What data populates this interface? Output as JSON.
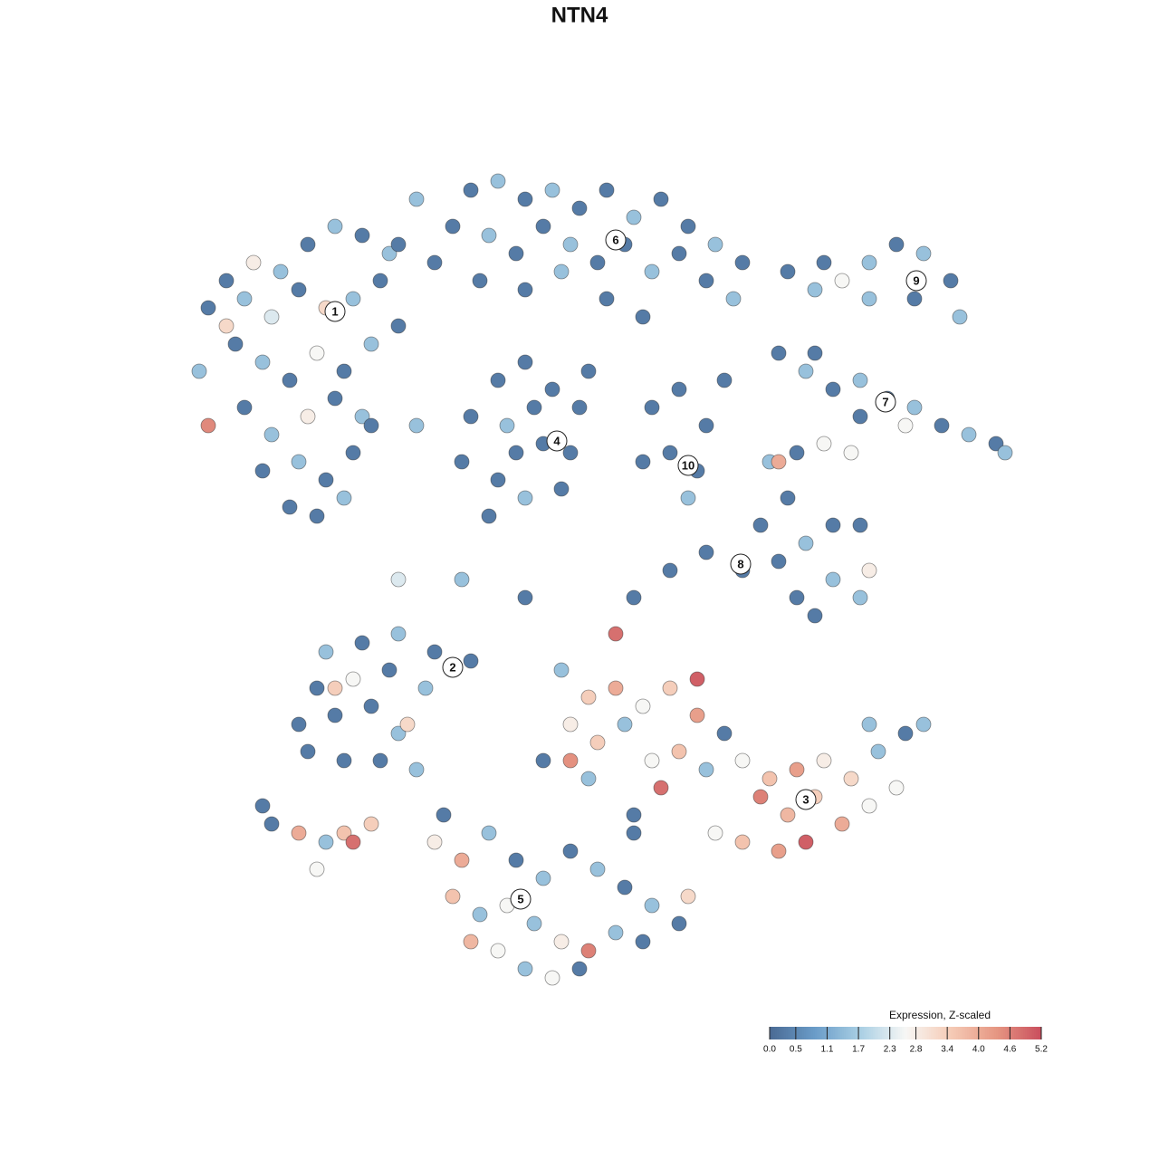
{
  "chart_data": {
    "type": "scatter",
    "title": "NTN4",
    "x": [
      25,
      28,
      31,
      34,
      37,
      40,
      43,
      23,
      27,
      30,
      33,
      36,
      39,
      42,
      22,
      26,
      29,
      32,
      35,
      38,
      41,
      44,
      23,
      27,
      30,
      34,
      37,
      40,
      29,
      33,
      36,
      39,
      32,
      35,
      38,
      41,
      25,
      52,
      55,
      58,
      61,
      64,
      67,
      70,
      73,
      76,
      79,
      82,
      50,
      54,
      57,
      60,
      63,
      66,
      69,
      72,
      75,
      78,
      81,
      48,
      53,
      58,
      62,
      67,
      71,
      46,
      44,
      55,
      58,
      61,
      64,
      52,
      56,
      60,
      63,
      51,
      55,
      58,
      62,
      54,
      59,
      57,
      65,
      74,
      77,
      76,
      78,
      72,
      75,
      80,
      87,
      90,
      93,
      96,
      99,
      102,
      105,
      101,
      106,
      96,
      91,
      86,
      89,
      92,
      95,
      98,
      101,
      104,
      107,
      110,
      111,
      100,
      95,
      90,
      85,
      88,
      91,
      94,
      87,
      84,
      86,
      89,
      92,
      95,
      78,
      82,
      74,
      70,
      88,
      92,
      95,
      90,
      96,
      86,
      36,
      40,
      44,
      48,
      52,
      35,
      39,
      43,
      47,
      33,
      37,
      41,
      44,
      34,
      38,
      42,
      46,
      37,
      45,
      62,
      65,
      68,
      71,
      74,
      77,
      80,
      63,
      66,
      69,
      72,
      75,
      78,
      68,
      77,
      82,
      85,
      88,
      91,
      94,
      97,
      100,
      102,
      84,
      87,
      90,
      93,
      96,
      89,
      86,
      82,
      79,
      73,
      70,
      65,
      60,
      99,
      96,
      63,
      48,
      51,
      54,
      57,
      60,
      63,
      66,
      69,
      72,
      75,
      50,
      53,
      56,
      59,
      62,
      65,
      68,
      71,
      55,
      58,
      61,
      64,
      49,
      52,
      70,
      76,
      30,
      33,
      36,
      38,
      35,
      39,
      41,
      29,
      44,
      51,
      58,
      46,
      71
    ],
    "y": [
      31,
      29,
      30,
      27,
      25,
      26,
      28,
      34,
      33,
      35,
      32,
      34,
      33,
      31,
      41,
      38,
      40,
      42,
      39,
      41,
      38,
      36,
      47,
      45,
      48,
      46,
      44,
      46,
      52,
      51,
      53,
      50,
      56,
      57,
      55,
      47,
      36,
      21,
      20,
      22,
      21,
      23,
      21,
      24,
      22,
      25,
      27,
      29,
      25,
      26,
      28,
      25,
      27,
      29,
      27,
      30,
      28,
      31,
      33,
      29,
      31,
      32,
      30,
      33,
      35,
      22,
      27,
      42,
      40,
      43,
      45,
      46,
      47,
      49,
      50,
      51,
      53,
      55,
      54,
      57,
      45,
      50,
      41,
      50,
      52,
      55,
      47,
      45,
      43,
      42,
      30,
      32,
      31,
      29,
      27,
      28,
      31,
      33,
      35,
      33,
      29,
      39,
      41,
      43,
      42,
      44,
      45,
      47,
      48,
      49,
      50,
      47,
      46,
      39,
      51,
      50,
      49,
      50,
      55,
      58,
      62,
      60,
      58,
      58,
      61,
      63,
      63,
      66,
      66,
      64,
      66,
      68,
      63,
      51,
      72,
      71,
      70,
      72,
      73,
      76,
      75,
      74,
      76,
      80,
      79,
      78,
      81,
      83,
      84,
      84,
      85,
      76,
      80,
      74,
      77,
      76,
      78,
      76,
      79,
      81,
      80,
      82,
      80,
      84,
      83,
      85,
      70,
      75,
      84,
      86,
      85,
      84,
      86,
      83,
      81,
      80,
      88,
      90,
      88,
      91,
      89,
      93,
      94,
      93,
      92,
      87,
      90,
      86,
      84,
      87,
      80,
      84,
      93,
      95,
      92,
      95,
      97,
      94,
      96,
      98,
      100,
      102,
      99,
      101,
      100,
      102,
      104,
      105,
      103,
      104,
      105,
      107,
      108,
      107,
      90,
      104,
      92,
      99,
      91,
      92,
      93,
      92,
      96,
      93,
      91,
      89,
      64,
      64,
      66,
      47,
      51
    ],
    "values": [
      0.3,
      2.8,
      1.5,
      0.3,
      1.5,
      0.3,
      1.5,
      0.3,
      1.5,
      2.3,
      0.3,
      3.2,
      1.5,
      0.3,
      1.5,
      0.3,
      1.5,
      0.3,
      2.6,
      0.3,
      1.5,
      0.3,
      4.5,
      0.3,
      1.5,
      2.8,
      0.3,
      1.5,
      0.3,
      1.5,
      0.3,
      0.3,
      0.3,
      0.3,
      1.5,
      0.3,
      3.2,
      0.3,
      1.5,
      0.3,
      1.5,
      0.3,
      0.3,
      1.5,
      0.3,
      0.3,
      1.5,
      0.3,
      0.3,
      1.5,
      0.3,
      0.3,
      1.5,
      0.3,
      0.3,
      1.5,
      0.3,
      0.3,
      1.5,
      0.3,
      0.3,
      0.3,
      1.5,
      0.3,
      0.3,
      1.5,
      0.3,
      0.3,
      0.3,
      0.3,
      0.3,
      0.3,
      1.5,
      0.3,
      0.3,
      0.3,
      0.3,
      1.5,
      0.3,
      0.3,
      0.3,
      0.3,
      0.3,
      0.3,
      0.3,
      1.5,
      0.3,
      0.3,
      0.3,
      0.3,
      0.3,
      1.5,
      2.6,
      1.5,
      0.3,
      1.5,
      0.3,
      0.3,
      1.5,
      1.5,
      0.3,
      0.3,
      1.5,
      0.3,
      1.5,
      0.3,
      1.5,
      0.3,
      1.5,
      0.3,
      1.5,
      2.6,
      0.3,
      0.3,
      1.5,
      0.3,
      2.6,
      2.6,
      0.3,
      0.3,
      0.3,
      1.5,
      0.3,
      0.3,
      0.3,
      0.3,
      0.3,
      0.3,
      0.3,
      1.5,
      1.5,
      0.3,
      2.8,
      4.0,
      1.5,
      0.3,
      1.5,
      0.3,
      0.3,
      0.3,
      2.6,
      0.3,
      1.5,
      0.3,
      0.3,
      0.3,
      1.5,
      0.3,
      0.3,
      0.3,
      1.5,
      3.4,
      3.2,
      1.5,
      3.4,
      4.0,
      2.6,
      3.4,
      4.2,
      0.3,
      2.8,
      3.4,
      1.5,
      2.6,
      3.6,
      1.5,
      4.8,
      5.0,
      2.6,
      3.6,
      4.2,
      2.8,
      3.2,
      1.5,
      0.3,
      1.5,
      4.6,
      3.8,
      3.4,
      4.0,
      2.6,
      5.0,
      4.2,
      3.6,
      2.6,
      4.8,
      0.3,
      1.5,
      0.3,
      2.6,
      1.5,
      4.4,
      2.8,
      4.0,
      1.5,
      0.3,
      1.5,
      0.3,
      1.5,
      0.3,
      1.5,
      0.3,
      3.6,
      1.5,
      2.6,
      1.5,
      2.8,
      4.6,
      1.5,
      0.3,
      2.6,
      1.5,
      2.6,
      0.3,
      0.3,
      3.8,
      0.3,
      3.2,
      0.3,
      4.0,
      1.5,
      3.6,
      2.6,
      4.8,
      3.4,
      0.3,
      2.3,
      1.5,
      0.3,
      1.5,
      0.3
    ],
    "xlim": [
      0,
      128
    ],
    "ylim": [
      128,
      0
    ],
    "cluster_labels": [
      {
        "label": "1",
        "x": 37,
        "y": 34.4
      },
      {
        "label": "2",
        "x": 50,
        "y": 73.7
      },
      {
        "label": "3",
        "x": 89,
        "y": 88.3
      },
      {
        "label": "4",
        "x": 61.5,
        "y": 48.7
      },
      {
        "label": "5",
        "x": 57.5,
        "y": 99.3
      },
      {
        "label": "6",
        "x": 68,
        "y": 26.5
      },
      {
        "label": "7",
        "x": 97.8,
        "y": 44.4
      },
      {
        "label": "8",
        "x": 81.8,
        "y": 62.3
      },
      {
        "label": "9",
        "x": 101.2,
        "y": 31
      },
      {
        "label": "10",
        "x": 76,
        "y": 51.4
      }
    ],
    "colorbar_title": "Expression, Z-scaled",
    "clim": [
      0,
      5.2
    ],
    "colorscale": [
      "#4a6a94",
      "#6a9cc8",
      "#a9cfe4",
      "#f7f7f5",
      "#f5cbb6",
      "#e69783",
      "#c94e5d"
    ],
    "colorbar_ticks": [
      {
        "value": 0,
        "label": "0.0"
      },
      0.5,
      1.1,
      1.7,
      2.3,
      2.8,
      3.4,
      {
        "value": 4,
        "label": "4.0"
      },
      4.6,
      5.2
    ]
  }
}
